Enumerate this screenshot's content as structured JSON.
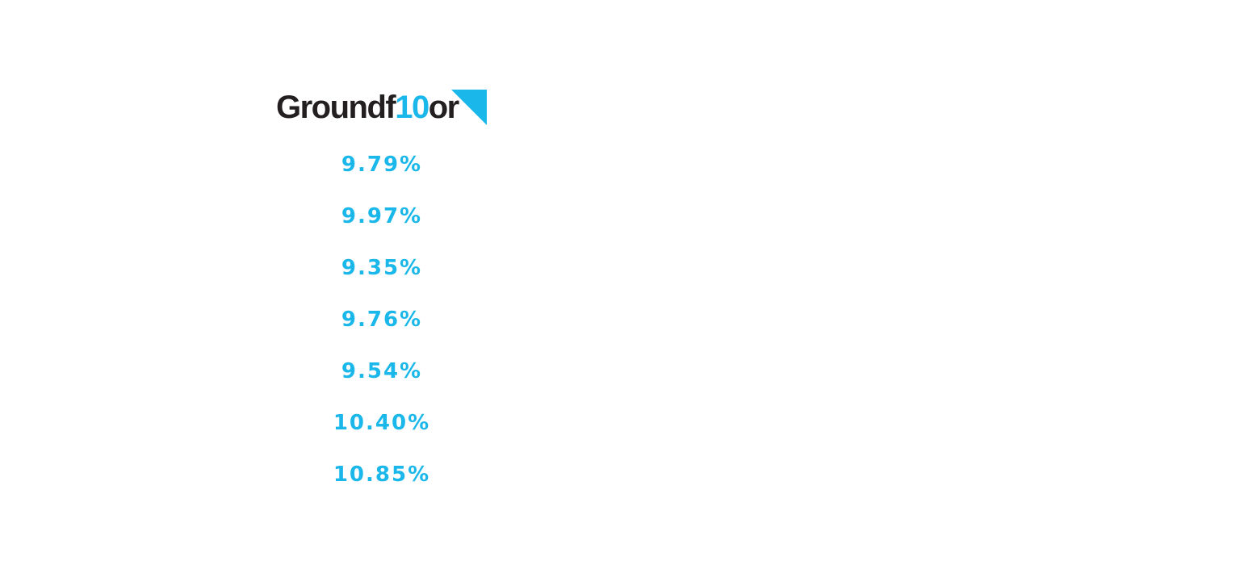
{
  "logo": {
    "parts": [
      "Groundf",
      "10",
      "or"
    ]
  },
  "rates": [
    "9.79%",
    "9.97%",
    "9.35%",
    "9.76%",
    "9.54%",
    "10.40%",
    "10.85%"
  ]
}
